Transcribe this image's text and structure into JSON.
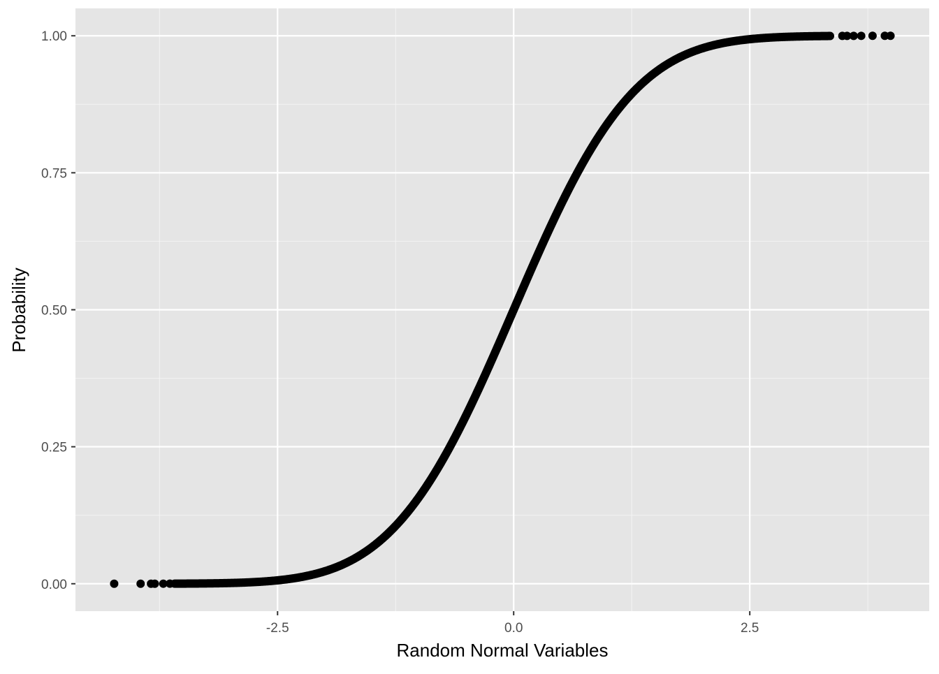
{
  "chart_data": {
    "type": "scatter",
    "title": "",
    "xlabel": "Random Normal Variables",
    "ylabel": "Probability",
    "xlim": [
      -4.64,
      4.4
    ],
    "ylim": [
      -0.05,
      1.05
    ],
    "x_ticks": [
      -2.5,
      0.0,
      2.5
    ],
    "x_tick_labels": [
      "-2.5",
      "0.0",
      "2.5"
    ],
    "y_ticks": [
      0,
      0.25,
      0.5,
      0.75,
      1
    ],
    "y_tick_labels": [
      "0.00",
      "0.25",
      "0.50",
      "0.75",
      "1.00"
    ],
    "y_function": "pnorm(x)",
    "dense_x_range": [
      -3.59,
      3.35
    ],
    "sparse_x": [
      -4.23,
      -3.95,
      -3.84,
      -3.8,
      -3.71,
      -3.64,
      3.48,
      3.53,
      3.6,
      3.68,
      3.8,
      3.93,
      3.99
    ],
    "grid": true,
    "panel_background": "#e5e5e5",
    "point_color": "#000000"
  }
}
